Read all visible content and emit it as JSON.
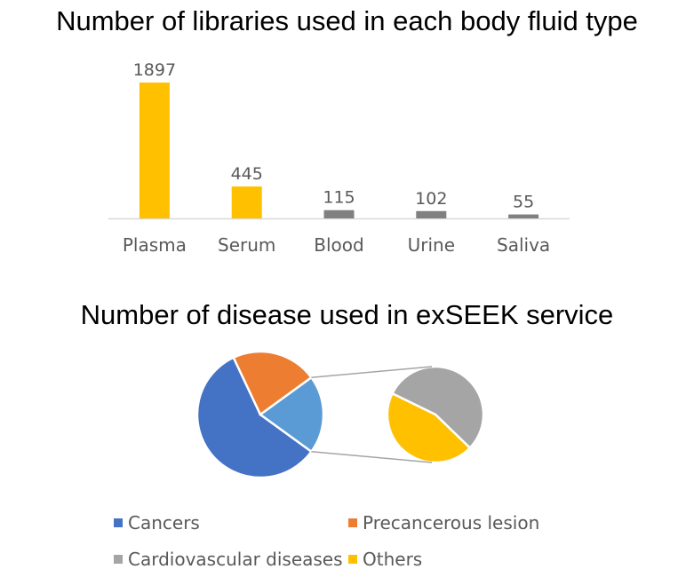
{
  "chart_data": [
    {
      "type": "bar",
      "title": "Number of libraries used in each body fluid type",
      "categories": [
        "Plasma",
        "Serum",
        "Blood",
        "Urine",
        "Saliva"
      ],
      "values": [
        1897,
        445,
        115,
        102,
        55
      ],
      "data_labels": [
        "1897",
        "445",
        "115",
        "102",
        "55"
      ],
      "bar_colors": [
        "#FFC000",
        "#FFC000",
        "#808080",
        "#808080",
        "#808080"
      ],
      "grid": false,
      "legend": "none",
      "ylim": [
        0,
        1897
      ]
    },
    {
      "type": "pie",
      "title": "Number of disease used in exSEEK service",
      "slices": [
        {
          "label": "Cancers",
          "value": 58,
          "color": "#4472C4"
        },
        {
          "label": "Precancerous lesion",
          "value": 22,
          "color": "#ED7D31"
        },
        {
          "label": "Cardiovascular diseases",
          "value": 11,
          "color": "#A5A5A5"
        },
        {
          "label": "Others",
          "value": 9,
          "color": "#FFC000"
        }
      ],
      "style": "pie-of-pie",
      "primary_colors": {
        "Cancers": "#4472C4",
        "Precancerous lesion": "#ED7D31",
        "Other group": "#5B9BD5"
      },
      "legend": "bottom"
    }
  ]
}
